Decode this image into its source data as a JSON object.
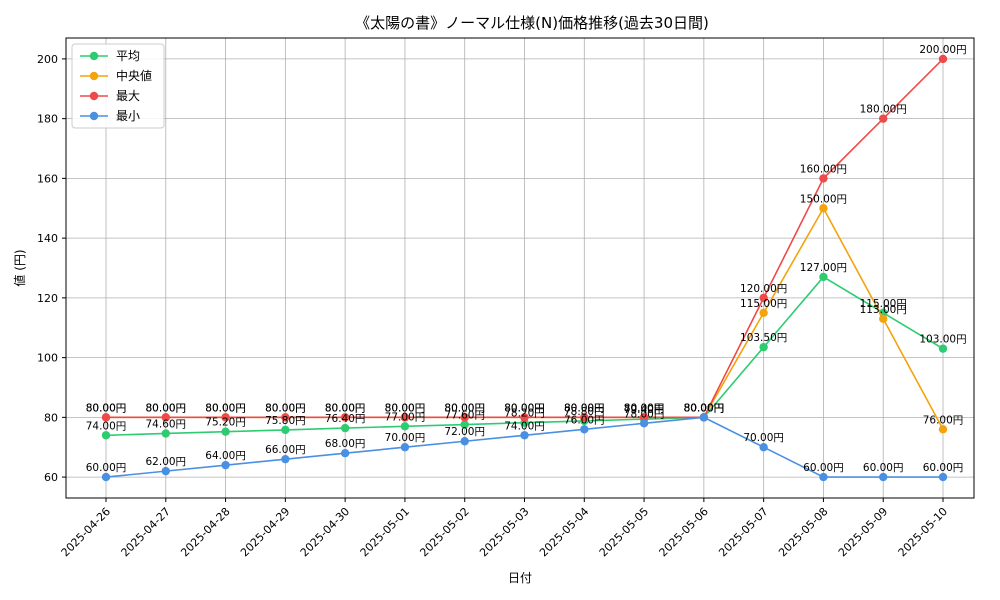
{
  "chart_data": {
    "type": "line",
    "title": "《太陽の書》ノーマル仕様(N)価格推移(過去30日間)",
    "xlabel": "日付",
    "ylabel": "値 (円)",
    "ylim": [
      53,
      207
    ],
    "yticks": [
      60,
      80,
      100,
      120,
      140,
      160,
      180,
      200
    ],
    "grid": true,
    "legend_position": "top-left",
    "label_suffix": "円",
    "categories": [
      "2025-04-26",
      "2025-04-27",
      "2025-04-28",
      "2025-04-29",
      "2025-04-30",
      "2025-05-01",
      "2025-05-02",
      "2025-05-03",
      "2025-05-04",
      "2025-05-05",
      "2025-05-06",
      "2025-05-07",
      "2025-05-08",
      "2025-05-09",
      "2025-05-10"
    ],
    "series": [
      {
        "name": "平均",
        "color": "#2ecc71",
        "values": [
          74.0,
          74.6,
          75.2,
          75.8,
          76.4,
          77.0,
          77.6,
          78.2,
          78.8,
          79.4,
          80.0,
          103.5,
          127.0,
          115.0,
          103.0
        ]
      },
      {
        "name": "中央値",
        "color": "#f5a30c",
        "values": [
          80.0,
          80.0,
          80.0,
          80.0,
          80.0,
          80.0,
          80.0,
          80.0,
          80.0,
          80.0,
          80.0,
          115.0,
          150.0,
          113.0,
          76.0
        ]
      },
      {
        "name": "最大",
        "color": "#ef4a4a",
        "values": [
          80.0,
          80.0,
          80.0,
          80.0,
          80.0,
          80.0,
          80.0,
          80.0,
          80.0,
          80.0,
          80.0,
          120.0,
          160.0,
          180.0,
          200.0
        ]
      },
      {
        "name": "最小",
        "color": "#4a90e2",
        "values": [
          60.0,
          62.0,
          64.0,
          66.0,
          68.0,
          70.0,
          72.0,
          74.0,
          76.0,
          78.0,
          80.0,
          70.0,
          60.0,
          60.0,
          60.0
        ]
      }
    ]
  }
}
